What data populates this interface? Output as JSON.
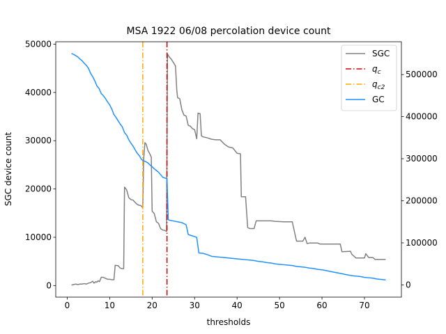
{
  "chart_data": {
    "type": "line",
    "title": "MSA 1922 06/08 percolation device count",
    "xlabel": "thresholds",
    "ylabel": "SGC device count",
    "ylabel_color": "#808080",
    "xlim": [
      -2.7,
      78.7
    ],
    "ylim_left": [
      -2400,
      50500
    ],
    "ylim_right": [
      -29000,
      578000
    ],
    "xticks": [
      0,
      10,
      20,
      30,
      40,
      50,
      60,
      70
    ],
    "yticks_left": [
      0,
      10000,
      20000,
      30000,
      40000,
      50000
    ],
    "yticks_right": [
      0,
      100000,
      200000,
      300000,
      400000,
      500000
    ],
    "legend_placement": "top-right",
    "grid": false,
    "series": [
      {
        "name": "SGC",
        "axis": "left",
        "color": "#808080",
        "style": "solid",
        "points": [
          [
            1,
            100
          ],
          [
            1.5,
            200
          ],
          [
            2,
            300
          ],
          [
            2.5,
            200
          ],
          [
            3,
            300
          ],
          [
            3.5,
            300
          ],
          [
            4,
            400
          ],
          [
            4.5,
            300
          ],
          [
            5,
            500
          ],
          [
            5.5,
            600
          ],
          [
            6,
            900
          ],
          [
            6.3,
            500
          ],
          [
            6.7,
            800
          ],
          [
            7,
            700
          ],
          [
            7.3,
            1000
          ],
          [
            7.6,
            800
          ],
          [
            8,
            1700
          ],
          [
            8.5,
            1700
          ],
          [
            9,
            1500
          ],
          [
            9.5,
            1300
          ],
          [
            10,
            1300
          ],
          [
            10.5,
            1200
          ],
          [
            11,
            1200
          ],
          [
            11.3,
            4200
          ],
          [
            12,
            4100
          ],
          [
            12.5,
            3600
          ],
          [
            13,
            3500
          ],
          [
            13.3,
            3500
          ],
          [
            13.5,
            20400
          ],
          [
            14,
            19800
          ],
          [
            14.5,
            18200
          ],
          [
            15,
            17800
          ],
          [
            15.5,
            17700
          ],
          [
            16,
            17200
          ],
          [
            16.5,
            16800
          ],
          [
            17,
            16600
          ],
          [
            17.3,
            16600
          ],
          [
            17.6,
            16300
          ],
          [
            17.8,
            16200
          ],
          [
            18,
            26100
          ],
          [
            18.3,
            29600
          ],
          [
            18.6,
            29300
          ],
          [
            19,
            28000
          ],
          [
            19.5,
            27200
          ],
          [
            19.8,
            26600
          ],
          [
            20,
            15400
          ],
          [
            20.5,
            14900
          ],
          [
            21,
            13200
          ],
          [
            21.5,
            12900
          ],
          [
            22,
            11800
          ],
          [
            22.5,
            11500
          ],
          [
            23,
            11400
          ],
          [
            23.4,
            11200
          ],
          [
            23.6,
            48000
          ],
          [
            24,
            47400
          ],
          [
            24.5,
            46900
          ],
          [
            25,
            46200
          ],
          [
            25.5,
            45500
          ],
          [
            25.8,
            40500
          ],
          [
            26,
            38900
          ],
          [
            26.5,
            38700
          ],
          [
            27,
            36400
          ],
          [
            27.5,
            35300
          ],
          [
            28,
            35100
          ],
          [
            28.5,
            33200
          ],
          [
            29,
            33000
          ],
          [
            29.5,
            32500
          ],
          [
            30,
            32300
          ],
          [
            30.5,
            30400
          ],
          [
            30.8,
            35700
          ],
          [
            31.3,
            35600
          ],
          [
            31.6,
            31000
          ],
          [
            32,
            30800
          ],
          [
            33,
            30600
          ],
          [
            34,
            30300
          ],
          [
            35,
            30200
          ],
          [
            36,
            30200
          ],
          [
            37,
            29300
          ],
          [
            38,
            28700
          ],
          [
            39,
            28500
          ],
          [
            40,
            27400
          ],
          [
            40.8,
            27300
          ],
          [
            41,
            18400
          ],
          [
            42,
            18400
          ],
          [
            42.5,
            12000
          ],
          [
            43,
            11800
          ],
          [
            44,
            11800
          ],
          [
            44.5,
            13400
          ],
          [
            46,
            13400
          ],
          [
            48,
            13400
          ],
          [
            49,
            13300
          ],
          [
            51,
            13200
          ],
          [
            53,
            13200
          ],
          [
            54,
            9200
          ],
          [
            55.5,
            9200
          ],
          [
            56,
            10000
          ],
          [
            56.5,
            8700
          ],
          [
            57,
            8800
          ],
          [
            58,
            8800
          ],
          [
            59,
            8800
          ],
          [
            59.5,
            8600
          ],
          [
            61,
            8600
          ],
          [
            62,
            8600
          ],
          [
            63,
            8600
          ],
          [
            64.3,
            8600
          ],
          [
            64.7,
            7000
          ],
          [
            66.7,
            7100
          ],
          [
            67,
            6500
          ],
          [
            68,
            5700
          ],
          [
            70,
            5700
          ],
          [
            70.3,
            6600
          ],
          [
            71,
            5800
          ],
          [
            72,
            5800
          ],
          [
            72.5,
            5400
          ],
          [
            75,
            5400
          ]
        ]
      },
      {
        "name": "q_c",
        "axis": "left",
        "color": "#d00000",
        "style": "dashdot",
        "x": 23.5
      },
      {
        "name": "q_c2",
        "axis": "left",
        "color": "#ffa500",
        "style": "dashdot",
        "x": 17.8
      },
      {
        "name": "GC",
        "axis": "right",
        "color": "#1e90ff",
        "style": "solid",
        "points": [
          [
            1,
            550000
          ],
          [
            1.5,
            548000
          ],
          [
            2,
            545000
          ],
          [
            2.5,
            542000
          ],
          [
            3,
            537000
          ],
          [
            3.5,
            533000
          ],
          [
            4,
            527000
          ],
          [
            4.5,
            522000
          ],
          [
            5,
            515000
          ],
          [
            5.5,
            503000
          ],
          [
            6,
            495000
          ],
          [
            6.5,
            485000
          ],
          [
            7,
            473000
          ],
          [
            7.5,
            467000
          ],
          [
            8,
            455000
          ],
          [
            8.5,
            450000
          ],
          [
            9,
            443000
          ],
          [
            9.5,
            435000
          ],
          [
            10,
            428000
          ],
          [
            10.5,
            418000
          ],
          [
            11,
            405000
          ],
          [
            11.5,
            398000
          ],
          [
            12,
            390000
          ],
          [
            12.5,
            382000
          ],
          [
            13,
            375000
          ],
          [
            13.5,
            362000
          ],
          [
            14,
            356000
          ],
          [
            14.5,
            345000
          ],
          [
            15,
            337000
          ],
          [
            15.5,
            330000
          ],
          [
            16,
            321000
          ],
          [
            16.5,
            313000
          ],
          [
            17,
            307000
          ],
          [
            17.5,
            298000
          ],
          [
            18,
            295000
          ],
          [
            18.5,
            293000
          ],
          [
            19,
            290000
          ],
          [
            19.5,
            285000
          ],
          [
            20,
            281000
          ],
          [
            20.5,
            276000
          ],
          [
            21,
            272000
          ],
          [
            21.5,
            268000
          ],
          [
            22,
            262000
          ],
          [
            22.5,
            256000
          ],
          [
            23,
            254000
          ],
          [
            23.5,
            253000
          ],
          [
            23.8,
            155000
          ],
          [
            24,
            154000
          ],
          [
            25,
            152000
          ],
          [
            26,
            150000
          ],
          [
            27,
            148000
          ],
          [
            28,
            143000
          ],
          [
            28.5,
            120000
          ],
          [
            29,
            118000
          ],
          [
            30,
            115000
          ],
          [
            30.5,
            113000
          ],
          [
            31,
            76000
          ],
          [
            32,
            75000
          ],
          [
            33,
            72000
          ],
          [
            34,
            68000
          ],
          [
            35,
            67000
          ],
          [
            36,
            66000
          ],
          [
            37,
            65000
          ],
          [
            38,
            64000
          ],
          [
            39,
            63000
          ],
          [
            40,
            62000
          ],
          [
            41,
            61000
          ],
          [
            42,
            60000
          ],
          [
            43,
            59000
          ],
          [
            44,
            58000
          ],
          [
            45,
            56000
          ],
          [
            46,
            55000
          ],
          [
            47,
            53000
          ],
          [
            48,
            52000
          ],
          [
            49,
            50000
          ],
          [
            50,
            49000
          ],
          [
            51,
            48000
          ],
          [
            52,
            47000
          ],
          [
            53,
            46000
          ],
          [
            54,
            44000
          ],
          [
            55,
            43000
          ],
          [
            56,
            42000
          ],
          [
            57,
            40000
          ],
          [
            58,
            39000
          ],
          [
            59,
            37000
          ],
          [
            60,
            36000
          ],
          [
            61,
            34000
          ],
          [
            62,
            32000
          ],
          [
            63,
            30000
          ],
          [
            64,
            28000
          ],
          [
            65,
            26000
          ],
          [
            66,
            24000
          ],
          [
            67,
            22000
          ],
          [
            68,
            21000
          ],
          [
            69,
            20000
          ],
          [
            70,
            18000
          ],
          [
            71,
            17000
          ],
          [
            72,
            16000
          ],
          [
            73,
            14000
          ],
          [
            74,
            13000
          ],
          [
            75,
            12000
          ]
        ]
      }
    ],
    "legend": [
      {
        "label": "SGC",
        "color": "#808080",
        "style": "solid"
      },
      {
        "label": "q",
        "sub": "c",
        "color": "#d00000",
        "style": "dashdot"
      },
      {
        "label": "q",
        "sub": "c2",
        "color": "#ffa500",
        "style": "dashdot"
      },
      {
        "label": "GC",
        "color": "#1e90ff",
        "style": "solid"
      }
    ]
  }
}
